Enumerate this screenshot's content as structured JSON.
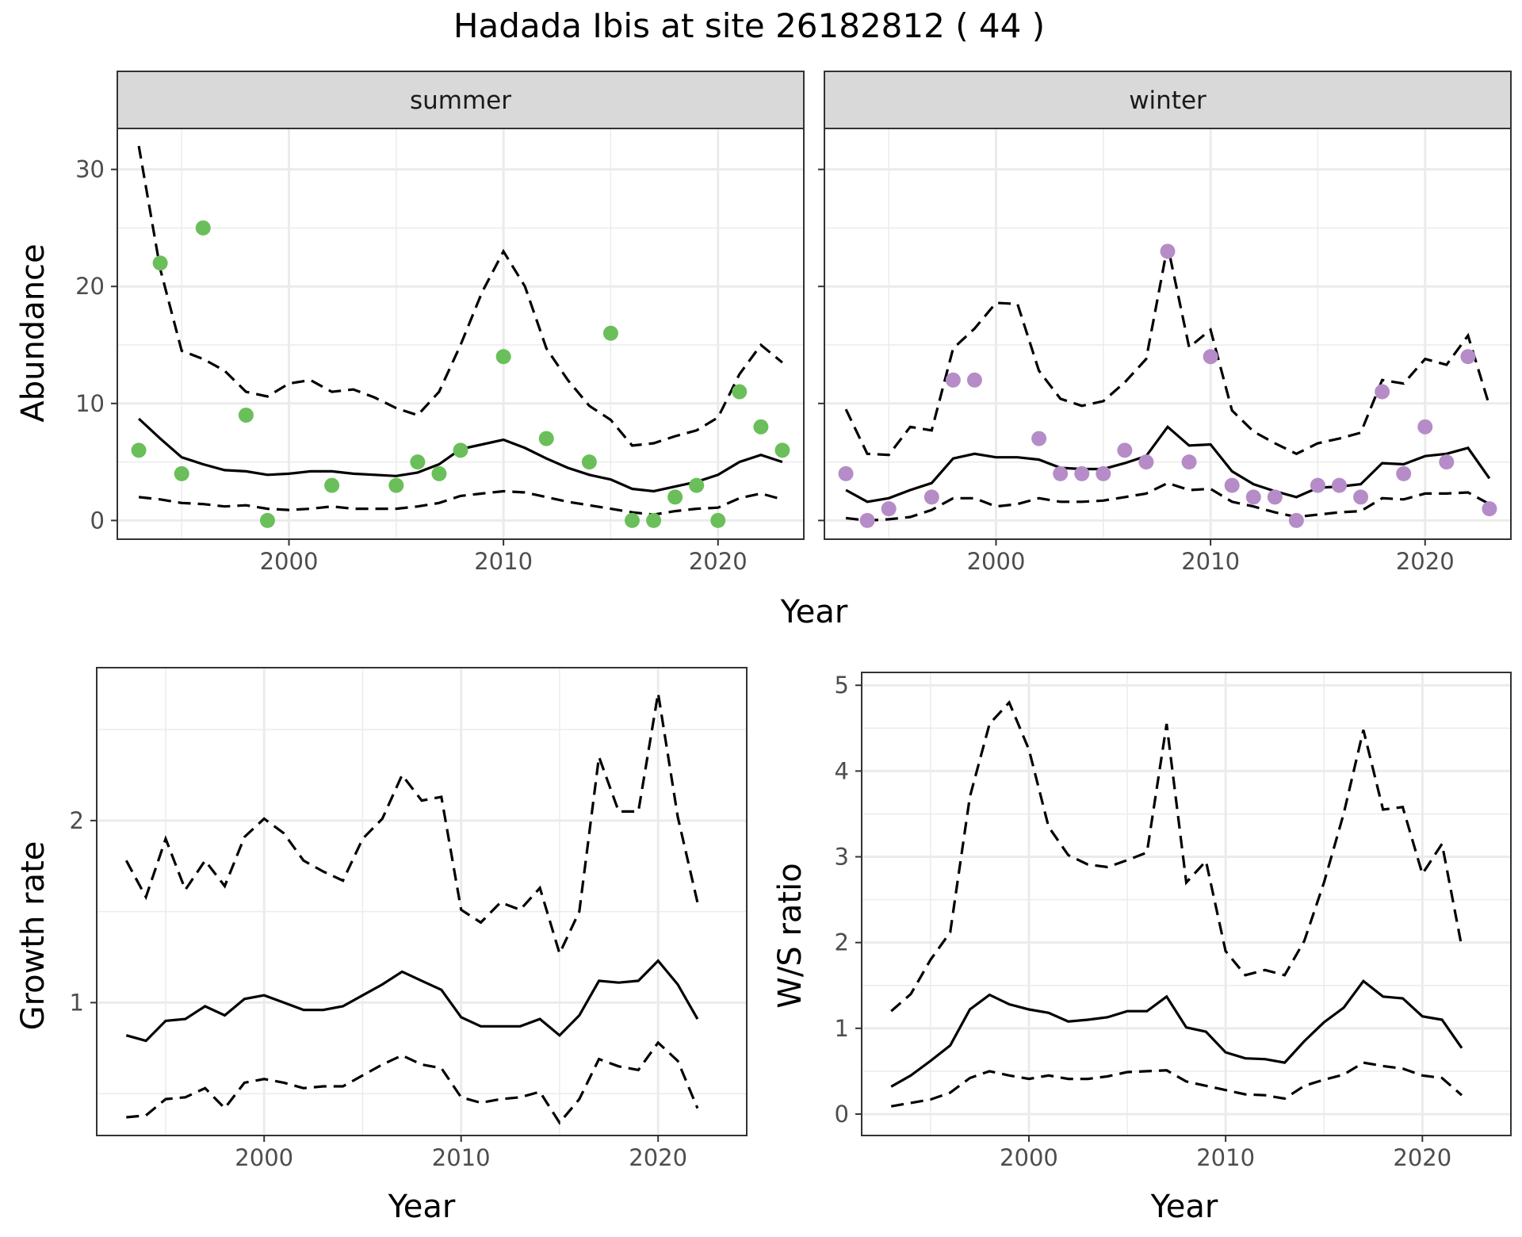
{
  "title": "Hadada Ibis at site 26182812 ( 44 )",
  "colors": {
    "summer_points": "#6abf5a",
    "winter_points": "#b58cc8",
    "line": "#000000",
    "strip": "#d9d9d9",
    "grid": "#ebebeb"
  },
  "chart_data": [
    {
      "type": "scatter",
      "panel": "summer",
      "ylabel": "Abundance",
      "xlabel": "Year",
      "xlim": [
        1992,
        2024
      ],
      "ylim": [
        -1.6,
        33.5
      ],
      "x_ticks": [
        2000,
        2010,
        2020
      ],
      "y_ticks": [
        0,
        10,
        20,
        30
      ],
      "points": {
        "name": "observed",
        "x": [
          1993,
          1994,
          1995,
          1996,
          1998,
          1999,
          2002,
          2005,
          2006,
          2007,
          2008,
          2010,
          2012,
          2014,
          2015,
          2016,
          2017,
          2018,
          2019,
          2020,
          2021,
          2022,
          2023
        ],
        "y": [
          6,
          22,
          4,
          25,
          9,
          0,
          3,
          3,
          5,
          4,
          6,
          14,
          7,
          5,
          16,
          0,
          0,
          2,
          3,
          0,
          11,
          8,
          6
        ]
      },
      "x": [
        1993,
        1994,
        1995,
        1996,
        1997,
        1998,
        1999,
        2000,
        2001,
        2002,
        2003,
        2004,
        2005,
        2006,
        2007,
        2008,
        2009,
        2010,
        2011,
        2012,
        2013,
        2014,
        2015,
        2016,
        2017,
        2018,
        2019,
        2020,
        2021,
        2022,
        2023
      ],
      "series": [
        {
          "name": "",
          "style": "solid",
          "values": [
            8.7,
            7.0,
            5.4,
            4.8,
            4.3,
            4.2,
            3.9,
            4.0,
            4.2,
            4.2,
            4.0,
            3.9,
            3.8,
            4.1,
            4.8,
            6.1,
            6.5,
            6.9,
            6.2,
            5.3,
            4.5,
            3.9,
            3.5,
            2.7,
            2.5,
            2.9,
            3.3,
            3.9,
            5.0,
            5.6,
            5.0
          ]
        },
        {
          "name": "",
          "style": "dashed",
          "values": [
            32.0,
            21.5,
            14.5,
            13.8,
            12.8,
            11.0,
            10.6,
            11.7,
            12.0,
            11.0,
            11.2,
            10.5,
            9.6,
            9.0,
            11.0,
            15.0,
            19.5,
            23.0,
            20.0,
            14.7,
            12.0,
            9.8,
            8.6,
            6.4,
            6.6,
            7.2,
            7.7,
            8.8,
            12.5,
            15.0,
            13.5
          ]
        },
        {
          "name": "",
          "style": "dashed",
          "values": [
            2.0,
            1.8,
            1.5,
            1.4,
            1.2,
            1.3,
            1.0,
            0.9,
            1.0,
            1.2,
            1.0,
            1.0,
            1.0,
            1.2,
            1.5,
            2.1,
            2.3,
            2.5,
            2.4,
            2.0,
            1.6,
            1.3,
            1.0,
            0.7,
            0.5,
            0.8,
            1.0,
            1.1,
            1.9,
            2.3,
            1.8
          ]
        }
      ]
    },
    {
      "type": "scatter",
      "panel": "winter",
      "ylabel": "",
      "xlabel": "Year",
      "xlim": [
        1992,
        2024
      ],
      "ylim": [
        -1.6,
        33.5
      ],
      "x_ticks": [
        2000,
        2010,
        2020
      ],
      "y_ticks": [
        0,
        10,
        20,
        30
      ],
      "points": {
        "name": "observed",
        "x": [
          1993,
          1994,
          1995,
          1997,
          1998,
          1999,
          2002,
          2003,
          2004,
          2005,
          2006,
          2007,
          2008,
          2009,
          2010,
          2011,
          2012,
          2013,
          2014,
          2015,
          2016,
          2017,
          2018,
          2019,
          2020,
          2021,
          2022,
          2023
        ],
        "y": [
          4,
          0,
          1,
          2,
          12,
          12,
          7,
          4,
          4,
          4,
          6,
          5,
          23,
          5,
          14,
          3,
          2,
          2,
          0,
          3,
          3,
          2,
          11,
          4,
          8,
          5,
          14,
          1
        ]
      },
      "x": [
        1993,
        1994,
        1995,
        1996,
        1997,
        1998,
        1999,
        2000,
        2001,
        2002,
        2003,
        2004,
        2005,
        2006,
        2007,
        2008,
        2009,
        2010,
        2011,
        2012,
        2013,
        2014,
        2015,
        2016,
        2017,
        2018,
        2019,
        2020,
        2021,
        2022,
        2023
      ],
      "series": [
        {
          "name": "",
          "style": "solid",
          "values": [
            2.6,
            1.6,
            1.9,
            2.6,
            3.2,
            5.3,
            5.7,
            5.4,
            5.4,
            5.2,
            4.5,
            4.4,
            4.4,
            4.9,
            5.5,
            8.0,
            6.4,
            6.5,
            4.2,
            3.1,
            2.5,
            2.0,
            2.8,
            2.9,
            3.1,
            4.9,
            4.8,
            5.5,
            5.7,
            6.2,
            3.6
          ]
        },
        {
          "name": "",
          "style": "dashed",
          "values": [
            9.5,
            5.7,
            5.6,
            8.0,
            7.7,
            14.7,
            16.4,
            18.6,
            18.5,
            12.8,
            10.4,
            9.8,
            10.2,
            11.8,
            13.8,
            23.5,
            14.8,
            16.3,
            9.4,
            7.6,
            6.6,
            5.7,
            6.6,
            7.0,
            7.5,
            12.0,
            11.7,
            13.8,
            13.3,
            15.8,
            9.8
          ]
        },
        {
          "name": "",
          "style": "dashed",
          "values": [
            0.2,
            0.0,
            0.1,
            0.3,
            0.9,
            1.9,
            1.9,
            1.2,
            1.4,
            1.9,
            1.6,
            1.6,
            1.7,
            2.0,
            2.3,
            3.2,
            2.6,
            2.7,
            1.6,
            1.2,
            0.7,
            0.3,
            0.5,
            0.7,
            0.8,
            1.9,
            1.8,
            2.3,
            2.3,
            2.4,
            1.4
          ]
        }
      ]
    },
    {
      "type": "line",
      "panel": "growth",
      "ylabel": "Growth rate",
      "xlabel": "Year",
      "xlim": [
        1991.5,
        2024.5
      ],
      "ylim": [
        0.27,
        2.84
      ],
      "x_ticks": [
        2000,
        2010,
        2020
      ],
      "y_ticks": [
        1,
        2
      ],
      "x": [
        1993,
        1994,
        1995,
        1996,
        1997,
        1998,
        1999,
        2000,
        2001,
        2002,
        2003,
        2004,
        2005,
        2006,
        2007,
        2008,
        2009,
        2010,
        2011,
        2012,
        2013,
        2014,
        2015,
        2016,
        2017,
        2018,
        2019,
        2020,
        2021,
        2022
      ],
      "series": [
        {
          "name": "",
          "style": "solid",
          "values": [
            0.82,
            0.79,
            0.9,
            0.91,
            0.98,
            0.93,
            1.02,
            1.04,
            1.0,
            0.96,
            0.96,
            0.98,
            1.04,
            1.1,
            1.17,
            1.12,
            1.07,
            0.92,
            0.87,
            0.87,
            0.87,
            0.91,
            0.82,
            0.93,
            1.12,
            1.11,
            1.12,
            1.23,
            1.1,
            0.91
          ]
        },
        {
          "name": "",
          "style": "dashed",
          "values": [
            1.78,
            1.58,
            1.9,
            1.62,
            1.78,
            1.64,
            1.91,
            2.01,
            1.93,
            1.78,
            1.72,
            1.67,
            1.9,
            2.01,
            2.25,
            2.11,
            2.13,
            1.51,
            1.44,
            1.55,
            1.51,
            1.63,
            1.27,
            1.5,
            2.35,
            2.05,
            2.05,
            2.7,
            2.02,
            1.55
          ]
        },
        {
          "name": "",
          "style": "dashed",
          "values": [
            0.37,
            0.38,
            0.47,
            0.48,
            0.53,
            0.42,
            0.56,
            0.58,
            0.56,
            0.53,
            0.54,
            0.54,
            0.6,
            0.66,
            0.71,
            0.66,
            0.64,
            0.48,
            0.45,
            0.47,
            0.48,
            0.51,
            0.34,
            0.47,
            0.69,
            0.65,
            0.63,
            0.78,
            0.68,
            0.42
          ]
        }
      ]
    },
    {
      "type": "line",
      "panel": "ratio",
      "ylabel": "W/S ratio",
      "xlabel": "Year",
      "xlim": [
        1991.5,
        2024.5
      ],
      "ylim": [
        -0.25,
        5.15
      ],
      "x_ticks": [
        2000,
        2010,
        2020
      ],
      "y_ticks": [
        0,
        1,
        2,
        3,
        4,
        5
      ],
      "x": [
        1993,
        1994,
        1995,
        1996,
        1997,
        1998,
        1999,
        2000,
        2001,
        2002,
        2003,
        2004,
        2005,
        2006,
        2007,
        2008,
        2009,
        2010,
        2011,
        2012,
        2013,
        2014,
        2015,
        2016,
        2017,
        2018,
        2019,
        2020,
        2021,
        2022
      ],
      "series": [
        {
          "name": "",
          "style": "solid",
          "values": [
            0.32,
            0.45,
            0.62,
            0.8,
            1.22,
            1.39,
            1.28,
            1.22,
            1.18,
            1.08,
            1.1,
            1.13,
            1.2,
            1.2,
            1.37,
            1.01,
            0.96,
            0.72,
            0.65,
            0.64,
            0.6,
            0.85,
            1.07,
            1.24,
            1.55,
            1.37,
            1.35,
            1.14,
            1.1,
            0.77
          ]
        },
        {
          "name": "",
          "style": "dashed",
          "values": [
            1.2,
            1.4,
            1.8,
            2.12,
            3.7,
            4.55,
            4.8,
            4.25,
            3.35,
            3.02,
            2.91,
            2.88,
            2.96,
            3.05,
            4.55,
            2.7,
            2.95,
            1.9,
            1.62,
            1.68,
            1.62,
            2.02,
            2.7,
            3.5,
            4.48,
            3.55,
            3.58,
            2.8,
            3.15,
            1.95
          ]
        },
        {
          "name": "",
          "style": "dashed",
          "values": [
            0.09,
            0.13,
            0.17,
            0.25,
            0.42,
            0.5,
            0.45,
            0.41,
            0.45,
            0.41,
            0.41,
            0.44,
            0.49,
            0.5,
            0.51,
            0.38,
            0.33,
            0.28,
            0.23,
            0.22,
            0.18,
            0.33,
            0.4,
            0.46,
            0.6,
            0.56,
            0.53,
            0.45,
            0.42,
            0.22
          ]
        }
      ]
    }
  ]
}
